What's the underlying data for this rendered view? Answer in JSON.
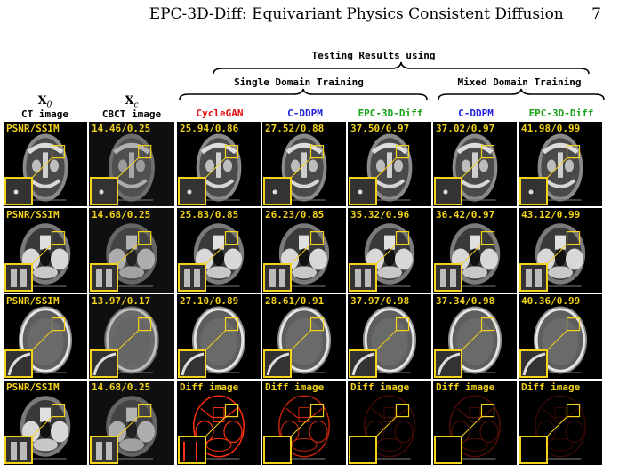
{
  "running_head": {
    "title": "EPC-3D-Diff: Equivariant Physics Consistent Diffusion",
    "page_number": "7"
  },
  "group_headers": {
    "testing": "Testing Results using",
    "single": "Single Domain Training",
    "mixed": "Mixed Domain Training"
  },
  "columns": [
    {
      "var": "X",
      "sub": "0",
      "label": "CT image",
      "color": "#000000"
    },
    {
      "var": "X",
      "sub": "c",
      "label": "CBCT image",
      "color": "#000000"
    },
    {
      "var": "",
      "sub": "",
      "label": "CycleGAN",
      "color": "#e01010"
    },
    {
      "var": "",
      "sub": "",
      "label": "C-DDPM",
      "color": "#2020e0"
    },
    {
      "var": "",
      "sub": "",
      "label": "EPC-3D-Diff",
      "color": "#18a018"
    },
    {
      "var": "",
      "sub": "",
      "label": "C-DDPM",
      "color": "#2020e0"
    },
    {
      "var": "",
      "sub": "",
      "label": "EPC-3D-Diff",
      "color": "#18a018"
    }
  ],
  "rows": [
    {
      "type": "skull",
      "metrics": [
        "PSNR/SSIM",
        "14.46/0.25",
        "25.94/0.86",
        "27.52/0.88",
        "37.50/0.97",
        "37.02/0.97",
        "41.98/0.99"
      ]
    },
    {
      "type": "base",
      "metrics": [
        "PSNR/SSIM",
        "14.68/0.25",
        "25.83/0.85",
        "26.23/0.85",
        "35.32/0.96",
        "36.42/0.97",
        "43.12/0.99"
      ]
    },
    {
      "type": "head",
      "metrics": [
        "PSNR/SSIM",
        "13.97/0.17",
        "27.10/0.89",
        "28.61/0.91",
        "37.97/0.98",
        "37.34/0.98",
        "40.36/0.99"
      ]
    },
    {
      "type": "diff",
      "metrics": [
        "PSNR/SSIM",
        "14.68/0.25",
        "Diff image",
        "Diff image",
        "Diff image",
        "Diff image",
        "Diff image"
      ]
    }
  ],
  "colors": {
    "highlight": "#f2d21a",
    "diff": "#ff3010"
  }
}
